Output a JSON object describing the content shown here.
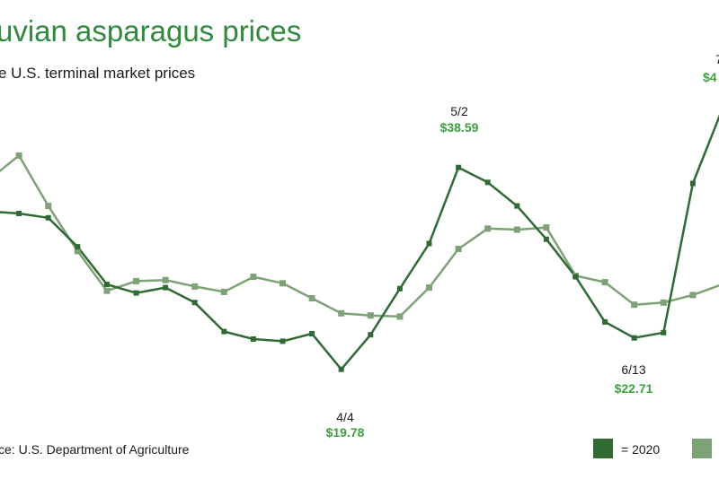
{
  "title": "uvian asparagus prices",
  "subtitle": "e U.S. terminal market prices",
  "source": "ce: U.S. Department of Agriculture",
  "colors": {
    "series_2020": "#2f6b33",
    "series_other": "#7da275",
    "price_label": "#3aa13a",
    "title": "#2e8b3a"
  },
  "legend": {
    "entry_2020": "= 2020"
  },
  "annotations": [
    {
      "date": "4/4",
      "price": "$19.78"
    },
    {
      "date": "5/2",
      "price": "$38.59"
    },
    {
      "date": "6/13",
      "price": "$22.71"
    },
    {
      "date": "7",
      "price": "$4"
    }
  ],
  "chart_data": {
    "type": "line",
    "ylim": [
      17,
      45
    ],
    "x": [
      0,
      1,
      2,
      3,
      4,
      5,
      6,
      7,
      8,
      9,
      10,
      11,
      12,
      13,
      14,
      15,
      16,
      17,
      18,
      19,
      20,
      21,
      22,
      23,
      24,
      25
    ],
    "series": [
      {
        "name": "2020",
        "values": [
          34.5,
          34.3,
          33.9,
          31.2,
          27.7,
          26.9,
          27.4,
          26.0,
          23.3,
          22.6,
          22.4,
          23.1,
          19.78,
          23.0,
          27.3,
          31.5,
          38.59,
          37.2,
          35.0,
          31.9,
          28.4,
          24.2,
          22.71,
          23.2,
          37.1,
          44.0
        ]
      },
      {
        "name": "",
        "values": [
          37.5,
          39.7,
          35.0,
          30.8,
          27.1,
          28.0,
          28.1,
          27.5,
          27.0,
          28.4,
          27.8,
          26.4,
          25.0,
          24.8,
          24.7,
          27.4,
          31.0,
          32.9,
          32.8,
          33.0,
          28.5,
          27.9,
          25.8,
          26.0,
          26.7,
          27.7
        ]
      }
    ]
  }
}
